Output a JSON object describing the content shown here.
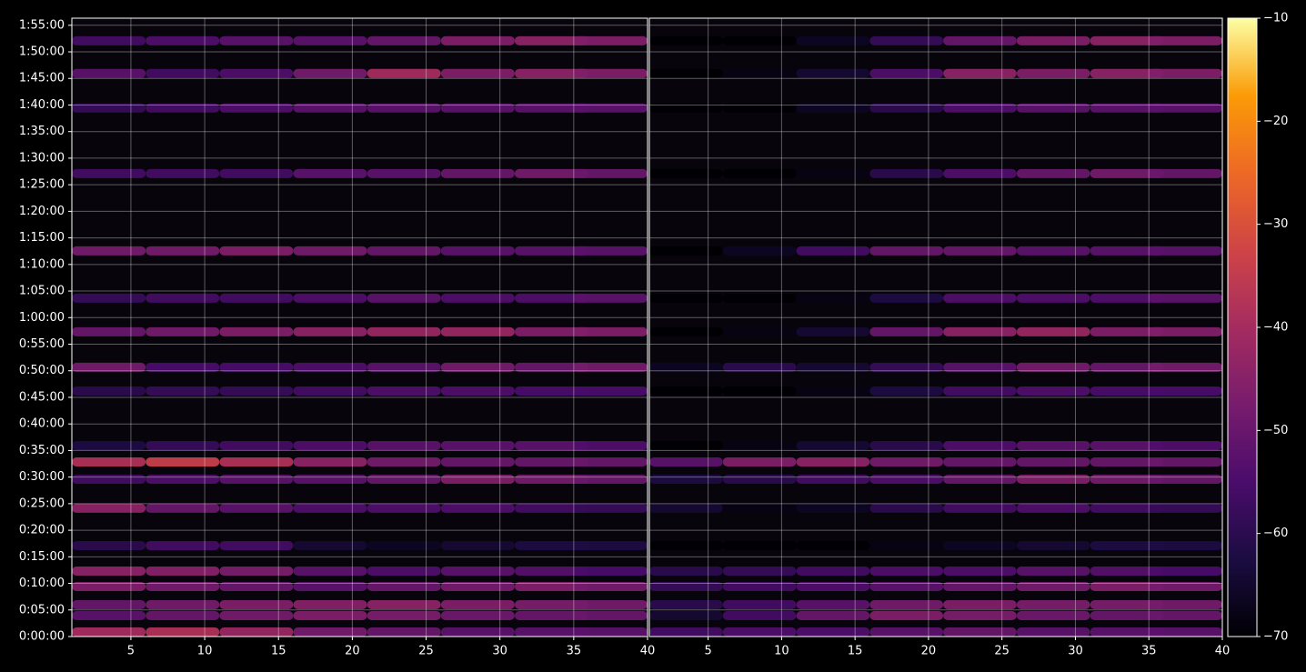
{
  "chart_data": {
    "type": "heatmap",
    "colormap": "inferno",
    "grid": true,
    "y": [
      51,
      236,
      359,
      565,
      739,
      1027,
      1448,
      1776,
      1971,
      2156,
      2772,
      3039,
      3440,
      3820,
      4354,
      5226,
      5966,
      6356,
      6725
    ],
    "ylim": [
      0,
      6980
    ],
    "yticks": [
      {
        "value": 0,
        "label": "0:00:00"
      },
      {
        "value": 300,
        "label": "0:05:00"
      },
      {
        "value": 600,
        "label": "0:10:00"
      },
      {
        "value": 900,
        "label": "0:15:00"
      },
      {
        "value": 1200,
        "label": "0:20:00"
      },
      {
        "value": 1500,
        "label": "0:25:00"
      },
      {
        "value": 1800,
        "label": "0:30:00"
      },
      {
        "value": 2100,
        "label": "0:35:00"
      },
      {
        "value": 2400,
        "label": "0:40:00"
      },
      {
        "value": 2700,
        "label": "0:45:00"
      },
      {
        "value": 3000,
        "label": "0:50:00"
      },
      {
        "value": 3300,
        "label": "0:55:00"
      },
      {
        "value": 3600,
        "label": "1:00:00"
      },
      {
        "value": 3900,
        "label": "1:05:00"
      },
      {
        "value": 4200,
        "label": "1:10:00"
      },
      {
        "value": 4500,
        "label": "1:15:00"
      },
      {
        "value": 4800,
        "label": "1:20:00"
      },
      {
        "value": 5100,
        "label": "1:25:00"
      },
      {
        "value": 5400,
        "label": "1:30:00"
      },
      {
        "value": 5700,
        "label": "1:35:00"
      },
      {
        "value": 6000,
        "label": "1:40:00"
      },
      {
        "value": 6300,
        "label": "1:45:00"
      },
      {
        "value": 6600,
        "label": "1:50:00"
      },
      {
        "value": 6900,
        "label": "1:55:00"
      }
    ],
    "panels": [
      {
        "x": [
          3.5,
          8.5,
          13.5,
          18.5,
          23.5,
          28.5,
          33.5,
          37.5
        ],
        "xlim": [
          1,
          40
        ],
        "xticks": [
          5,
          10,
          15,
          20,
          25,
          30,
          35,
          40
        ],
        "values": [
          [
            -40,
            -38,
            -42,
            -48,
            -50,
            -52,
            -52,
            -52
          ],
          [
            -52,
            -50,
            -48,
            -46,
            -47,
            -49,
            -50,
            -50
          ],
          [
            -50,
            -48,
            -46,
            -45,
            -44,
            -46,
            -47,
            -48
          ],
          [
            -46,
            -48,
            -50,
            -52,
            -50,
            -48,
            -46,
            -48
          ],
          [
            -44,
            -45,
            -47,
            -52,
            -54,
            -52,
            -53,
            -55
          ],
          [
            -60,
            -56,
            -56,
            -64,
            -66,
            -64,
            -62,
            -62
          ],
          [
            -44,
            -50,
            -52,
            -54,
            -54,
            -54,
            -56,
            -58
          ],
          [
            -56,
            -54,
            -52,
            -52,
            -50,
            -46,
            -48,
            -50
          ],
          [
            -38,
            -34,
            -38,
            -44,
            -48,
            -50,
            -50,
            -50
          ],
          [
            -62,
            -58,
            -56,
            -54,
            -52,
            -52,
            -52,
            -54
          ],
          [
            -60,
            -58,
            -58,
            -56,
            -54,
            -54,
            -55,
            -55
          ],
          [
            -48,
            -55,
            -55,
            -54,
            -52,
            -48,
            -50,
            -48
          ],
          [
            -50,
            -48,
            -46,
            -44,
            -42,
            -42,
            -46,
            -46
          ],
          [
            -58,
            -56,
            -56,
            -54,
            -52,
            -54,
            -54,
            -52
          ],
          [
            -48,
            -48,
            -46,
            -48,
            -50,
            -52,
            -52,
            -52
          ],
          [
            -56,
            -56,
            -56,
            -52,
            -52,
            -50,
            -48,
            -50
          ],
          [
            -58,
            -56,
            -54,
            -52,
            -52,
            -52,
            -52,
            -52
          ],
          [
            -52,
            -56,
            -54,
            -48,
            -40,
            -46,
            -44,
            -46
          ],
          [
            -56,
            -54,
            -52,
            -52,
            -50,
            -46,
            -44,
            -46
          ]
        ]
      },
      {
        "x": [
          3.5,
          8.5,
          13.5,
          18.5,
          23.5,
          28.5,
          33.5,
          37.5
        ],
        "xlim": [
          1,
          40
        ],
        "xticks": [
          5,
          10,
          15,
          20,
          25,
          30,
          35,
          40
        ],
        "values": [
          [
            -56,
            -54,
            -54,
            -52,
            -50,
            -52,
            -52,
            -52
          ],
          [
            -64,
            -56,
            -50,
            -46,
            -47,
            -49,
            -50,
            -50
          ],
          [
            -60,
            -56,
            -52,
            -48,
            -46,
            -47,
            -47,
            -48
          ],
          [
            -58,
            -56,
            -54,
            -52,
            -50,
            -48,
            -46,
            -48
          ],
          [
            -60,
            -58,
            -56,
            -54,
            -54,
            -52,
            -53,
            -55
          ],
          [
            -70,
            -70,
            -70,
            -68,
            -66,
            -64,
            -62,
            -62
          ],
          [
            -64,
            -68,
            -66,
            -60,
            -56,
            -54,
            -56,
            -58
          ],
          [
            -62,
            -60,
            -56,
            -54,
            -50,
            -46,
            -48,
            -50
          ],
          [
            -52,
            -46,
            -44,
            -48,
            -50,
            -50,
            -50,
            -50
          ],
          [
            -70,
            -68,
            -64,
            -60,
            -54,
            -52,
            -52,
            -54
          ],
          [
            -70,
            -70,
            -68,
            -62,
            -56,
            -54,
            -55,
            -55
          ],
          [
            -66,
            -60,
            -64,
            -58,
            -52,
            -48,
            -50,
            -48
          ],
          [
            -70,
            -68,
            -64,
            -50,
            -44,
            -42,
            -46,
            -46
          ],
          [
            -70,
            -70,
            -68,
            -62,
            -54,
            -54,
            -54,
            -52
          ],
          [
            -70,
            -66,
            -56,
            -50,
            -50,
            -52,
            -52,
            -52
          ],
          [
            -70,
            -70,
            -68,
            -60,
            -54,
            -50,
            -48,
            -50
          ],
          [
            -70,
            -70,
            -66,
            -60,
            -54,
            -52,
            -52,
            -52
          ],
          [
            -70,
            -68,
            -64,
            -54,
            -44,
            -46,
            -44,
            -46
          ],
          [
            -70,
            -70,
            -66,
            -58,
            -50,
            -46,
            -44,
            -46
          ]
        ]
      }
    ],
    "colorbar": {
      "lim": [
        -70,
        -10
      ],
      "ticks": [
        {
          "value": -70,
          "label": "−70"
        },
        {
          "value": -60,
          "label": "−60"
        },
        {
          "value": -50,
          "label": "−50"
        },
        {
          "value": -40,
          "label": "−40"
        },
        {
          "value": -30,
          "label": "−30"
        },
        {
          "value": -20,
          "label": "−20"
        },
        {
          "value": -10,
          "label": "−10"
        }
      ]
    }
  }
}
